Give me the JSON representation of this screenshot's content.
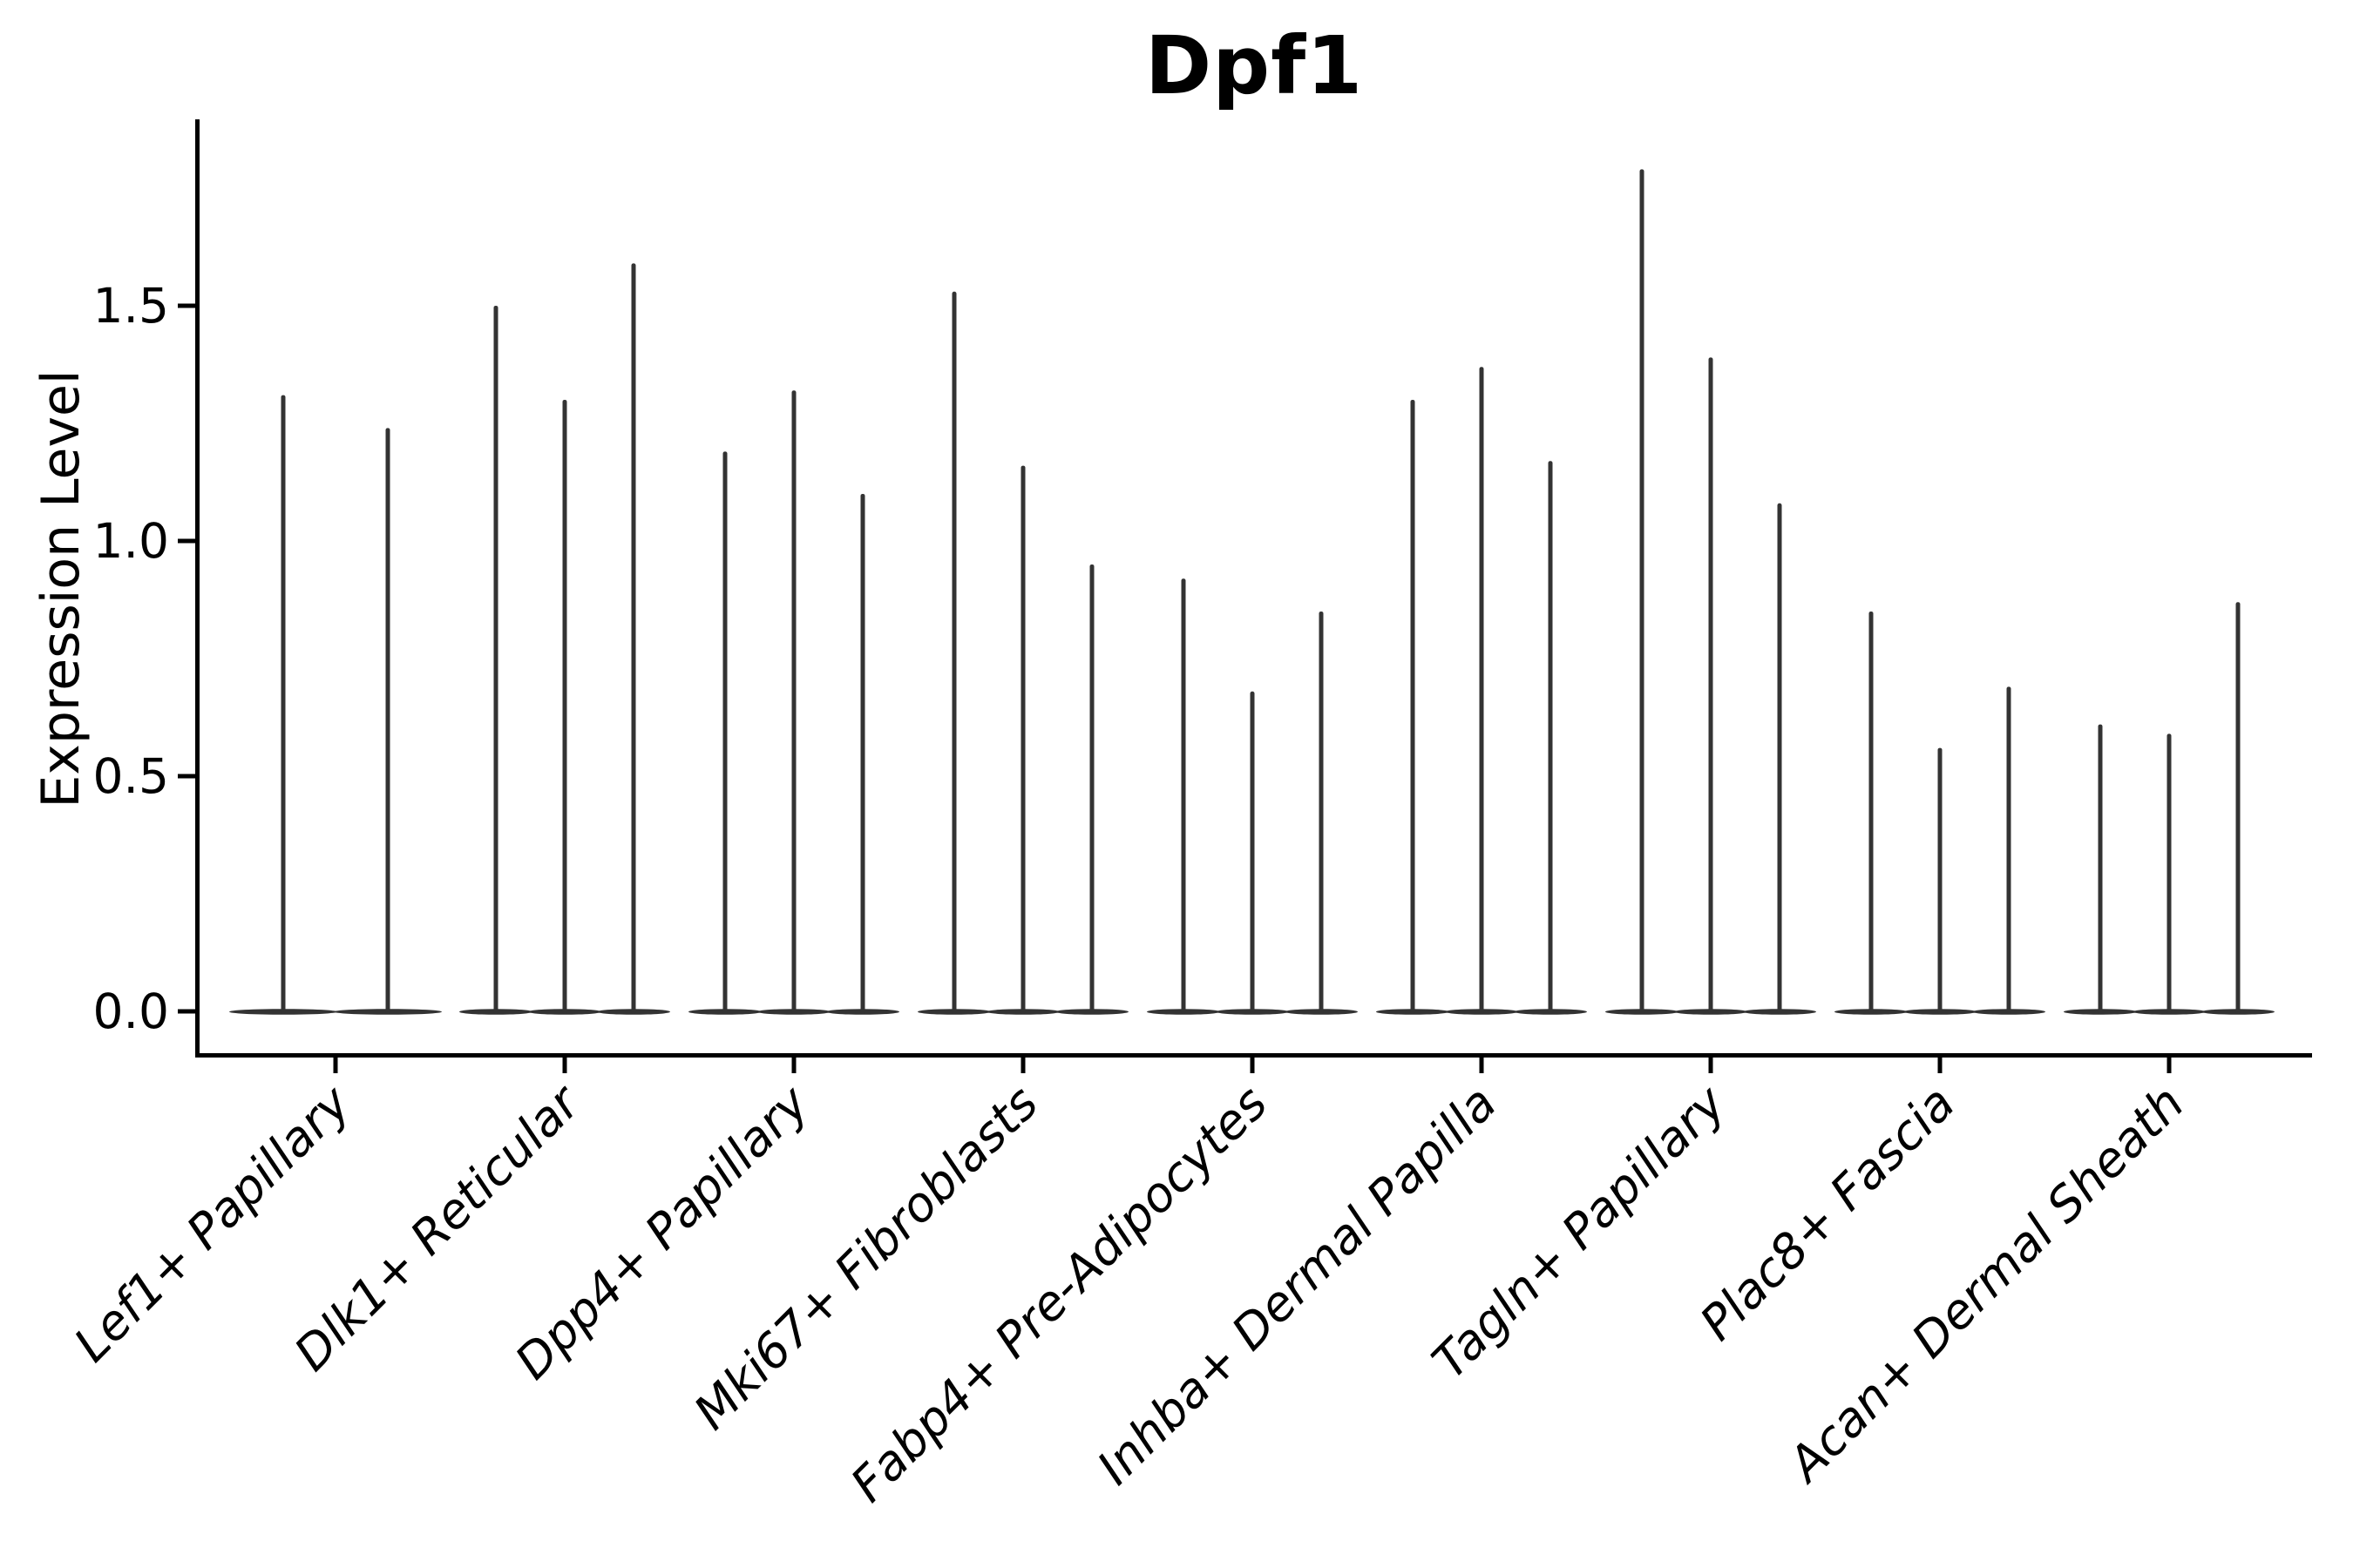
{
  "figure": {
    "title": "Dpf1"
  },
  "chart_data": {
    "type": "violin",
    "title": "Dpf1",
    "xlabel": "",
    "ylabel": "Expression Level",
    "ylim": [
      -0.1,
      1.9
    ],
    "grid": false,
    "legend": null,
    "background": "#ffffff",
    "axis_color": "#000000",
    "violin_color": "#333333",
    "x_tick_label_style": "italic",
    "yticks": [
      {
        "value": 0.0,
        "label": "0.0"
      },
      {
        "value": 0.5,
        "label": "0.5"
      },
      {
        "value": 1.0,
        "label": "1.0"
      },
      {
        "value": 1.5,
        "label": "1.5"
      }
    ],
    "description": "Violin plot of Dpf1 expression; each category holds 2-3 very thin violins (most cells at 0, shown as a wide flat base at y=0 with a thin spike up to the max expressed value).",
    "groups": [
      {
        "label": "Lef1+ Papillary",
        "violin_maxima": [
          1.31,
          1.24
        ]
      },
      {
        "label": "Dlk1+ Reticular",
        "violin_maxima": [
          1.5,
          1.3,
          1.59
        ]
      },
      {
        "label": "Dpp4+ Papillary",
        "violin_maxima": [
          1.19,
          1.32,
          1.1
        ]
      },
      {
        "label": "Mki67+ Fibroblasts",
        "violin_maxima": [
          1.53,
          1.16,
          0.95
        ]
      },
      {
        "label": "Fabp4+ Pre-Adipocytes",
        "violin_maxima": [
          0.92,
          0.68,
          0.85
        ]
      },
      {
        "label": "Inhba+ Dermal Papilla",
        "violin_maxima": [
          1.3,
          1.37,
          1.17
        ]
      },
      {
        "label": "Tagln+ Papillary",
        "violin_maxima": [
          1.79,
          1.39,
          1.08
        ]
      },
      {
        "label": "Plac8+ Fascia",
        "violin_maxima": [
          0.85,
          0.56,
          0.69
        ]
      },
      {
        "label": "Acan+ Dermal Sheath",
        "violin_maxima": [
          0.61,
          0.59,
          0.87
        ]
      }
    ]
  }
}
